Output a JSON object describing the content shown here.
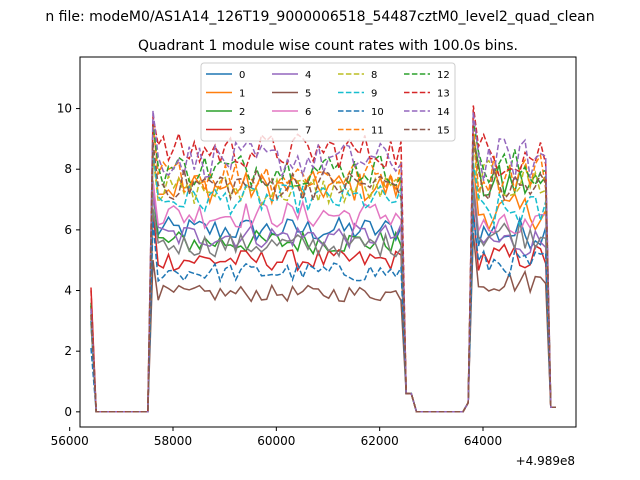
{
  "suptitle": "n file: modeM0/AS1A14_126T19_9000006518_54487cztM0_level2_quad_clean",
  "chart_data": {
    "type": "line",
    "title": "Quadrant 1 module wise count rates with 100.0s bins.",
    "xlabel": "",
    "ylabel": "",
    "x_offset_label": "+4.989e8",
    "xlim": [
      56200,
      65800
    ],
    "ylim": [
      -0.5,
      11.7
    ],
    "x_ticks": [
      56000,
      58000,
      60000,
      62000,
      64000
    ],
    "x_tick_labels": [
      "56000",
      "58000",
      "60000",
      "62000",
      "64000"
    ],
    "y_ticks": [
      0,
      2,
      4,
      6,
      8,
      10
    ],
    "y_tick_labels": [
      "0",
      "2",
      "4",
      "6",
      "8",
      "10"
    ],
    "grid": false,
    "legend_position": "top-center",
    "legend_columns": 4,
    "segments": [
      {
        "x_start": 56413,
        "x_end": 57513,
        "start_pct": 1.0
      },
      {
        "x_start": 57513,
        "x_end": 62513,
        "start_pct": 1.0
      },
      {
        "x_start": 62513,
        "x_end": 63713,
        "start_pct": 0.0
      },
      {
        "x_start": 63713,
        "x_end": 65413,
        "start_pct": 1.0
      }
    ],
    "series": [
      {
        "name": "0",
        "color": "#1f77b4",
        "dash": "solid",
        "level": 6.0,
        "first": 3.0,
        "tail": 5.9
      },
      {
        "name": "1",
        "color": "#ff7f0e",
        "dash": "solid",
        "level": 7.4,
        "first": 3.2,
        "tail": 6.6
      },
      {
        "name": "2",
        "color": "#2ca02c",
        "dash": "solid",
        "level": 5.6,
        "first": 3.6,
        "tail": 7.5
      },
      {
        "name": "3",
        "color": "#d62728",
        "dash": "solid",
        "level": 5.0,
        "first": 4.1,
        "tail": 5.1
      },
      {
        "name": "4",
        "color": "#9467bd",
        "dash": "solid",
        "level": 5.8,
        "first": 3.3,
        "tail": 5.6
      },
      {
        "name": "5",
        "color": "#8c564b",
        "dash": "solid",
        "level": 3.9,
        "first": 3.5,
        "tail": 4.3
      },
      {
        "name": "6",
        "color": "#e377c2",
        "dash": "solid",
        "level": 6.5,
        "first": 3.0,
        "tail": 6.0
      },
      {
        "name": "7",
        "color": "#7f7f7f",
        "dash": "solid",
        "level": 5.5,
        "first": 2.9,
        "tail": 5.9
      },
      {
        "name": "8",
        "color": "#bcbd22",
        "dash": "dash",
        "level": 7.3,
        "first": 3.1,
        "tail": 7.6
      },
      {
        "name": "9",
        "color": "#17becf",
        "dash": "dash",
        "level": 7.0,
        "first": 3.0,
        "tail": 6.6
      },
      {
        "name": "10",
        "color": "#1f77b4",
        "dash": "dash",
        "level": 4.6,
        "first": 2.1,
        "tail": 4.9
      },
      {
        "name": "11",
        "color": "#ff7f0e",
        "dash": "dash",
        "level": 7.8,
        "first": 3.4,
        "tail": 7.9
      },
      {
        "name": "12",
        "color": "#2ca02c",
        "dash": "dash",
        "level": 8.0,
        "first": 3.5,
        "tail": 8.0
      },
      {
        "name": "13",
        "color": "#d62728",
        "dash": "dash",
        "level": 8.6,
        "first": 4.0,
        "tail": 8.5
      },
      {
        "name": "14",
        "color": "#9467bd",
        "dash": "dash",
        "level": 8.3,
        "first": 3.4,
        "tail": 8.3
      },
      {
        "name": "15",
        "color": "#8c564b",
        "dash": "dash",
        "level": 7.5,
        "first": 3.2,
        "tail": 7.4
      }
    ]
  }
}
